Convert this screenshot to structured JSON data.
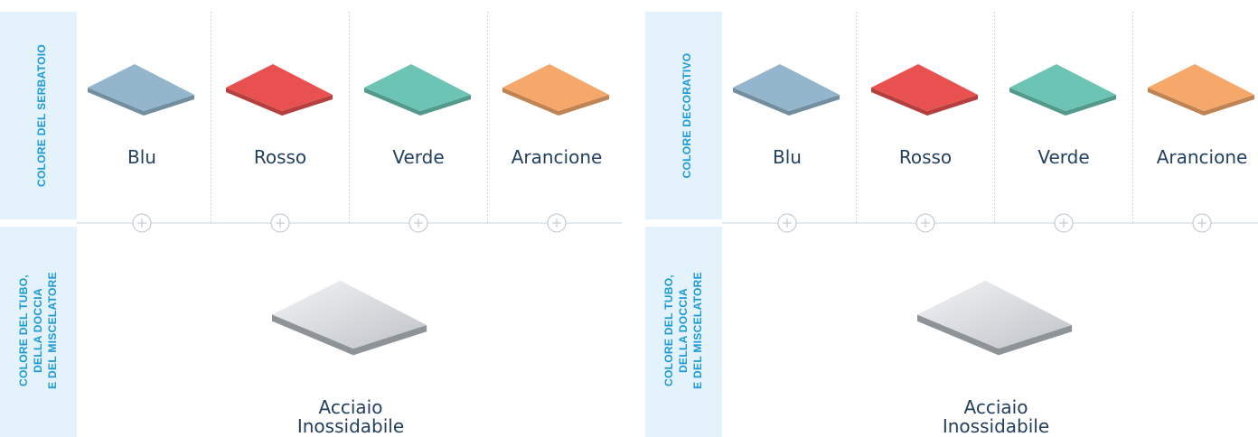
{
  "panels": [
    {
      "top_label": "COLORE DEL SERBATOIO",
      "options": [
        {
          "label": "Blu",
          "color": "#94b6cc"
        },
        {
          "label": "Rosso",
          "color": "#e8514f"
        },
        {
          "label": "Verde",
          "color": "#6cc5b4"
        },
        {
          "label": "Arancione",
          "color": "#f6a86a"
        }
      ],
      "bottom_label": [
        "COLORE DEL TUBO,",
        "DELLA DOCCIA",
        "E DEL MISCELATORE"
      ],
      "bottom_option": [
        "Acciaio",
        "Inossidabile"
      ]
    },
    {
      "top_label": "COLORE DECORATIVO",
      "options": [
        {
          "label": "Blu",
          "color": "#94b6cc"
        },
        {
          "label": "Rosso",
          "color": "#e8514f"
        },
        {
          "label": "Verde",
          "color": "#6cc5b4"
        },
        {
          "label": "Arancione",
          "color": "#f6a86a"
        }
      ],
      "bottom_label": [
        "COLORE DEL TUBO,",
        "DELLA DOCCIA",
        "E DEL MISCELATORE"
      ],
      "bottom_option": [
        "Acciaio",
        "Inossidabile"
      ]
    }
  ]
}
